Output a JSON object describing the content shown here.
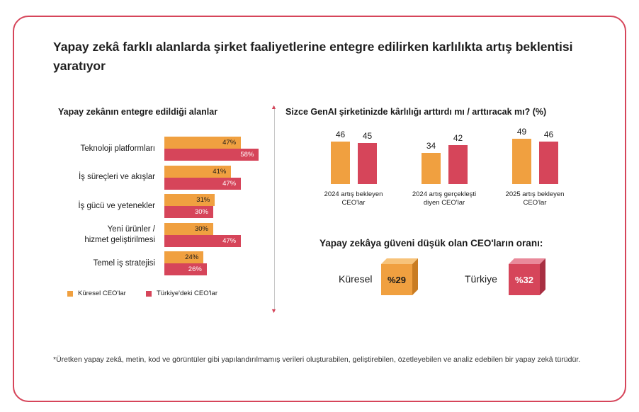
{
  "title": "Yapay zekâ farklı alanlarda şirket faaliyetlerine entegre edilirken karlılıkta artış beklentisi yaratıyor",
  "colors": {
    "global": "#f0a040",
    "turkey": "#d6455a",
    "accent": "#d6455a"
  },
  "chart_data": [
    {
      "type": "bar",
      "orientation": "horizontal",
      "title": "Yapay zekânın entegre edildiği alanlar",
      "categories": [
        "Teknoloji platformları",
        "İş süreçleri ve akışlar",
        "İş gücü ve yetenekler",
        "Yeni ürünler / hizmet geliştirilmesi",
        "Temel iş stratejisi"
      ],
      "category_lines": [
        [
          "Teknoloji platformları"
        ],
        [
          "İş süreçleri ve akışlar"
        ],
        [
          "İş gücü ve yetenekler"
        ],
        [
          "Yeni ürünler /",
          "hizmet geliştirilmesi"
        ],
        [
          "Temel iş stratejisi"
        ]
      ],
      "series": [
        {
          "name": "Küresel CEO'lar",
          "values": [
            47,
            41,
            31,
            30,
            24
          ],
          "labels": [
            "47%",
            "41%",
            "31%",
            "30%",
            "24%"
          ],
          "color": "#f0a040"
        },
        {
          "name": "Türkiye'deki CEO'lar",
          "values": [
            58,
            47,
            30,
            47,
            26
          ],
          "labels": [
            "58%",
            "47%",
            "30%",
            "47%",
            "26%"
          ],
          "color": "#d6455a"
        }
      ],
      "legend": "bottom-left"
    },
    {
      "type": "bar",
      "orientation": "vertical",
      "title": "Sizce GenAI şirketinizde kârlılığı arttırdı mı / arttıracak mı? (%)",
      "groups": [
        {
          "label_lines": [
            "2024 artış bekleyen",
            "CEO'lar"
          ],
          "values": [
            46,
            45
          ]
        },
        {
          "label_lines": [
            "2024 artış gerçekleşti",
            "diyen CEO'lar"
          ],
          "values": [
            34,
            42
          ]
        },
        {
          "label_lines": [
            "2025 artış bekleyen",
            "CEO'lar"
          ],
          "values": [
            49,
            46
          ]
        }
      ],
      "series_colors": [
        "#f0a040",
        "#d6455a"
      ]
    }
  ],
  "trust": {
    "title": "Yapay zekâya güveni düşük olan CEO'ların oranı:",
    "global_label": "Küresel",
    "global_value": "%29",
    "turkey_label": "Türkiye",
    "turkey_value": "%32"
  },
  "footnote": "*Üretken yapay zekâ, metin, kod ve görüntüler gibi yapılandırılmamış verileri oluşturabilen, geliştirebilen, özetleyebilen ve analiz edebilen bir yapay zekâ türüdür."
}
